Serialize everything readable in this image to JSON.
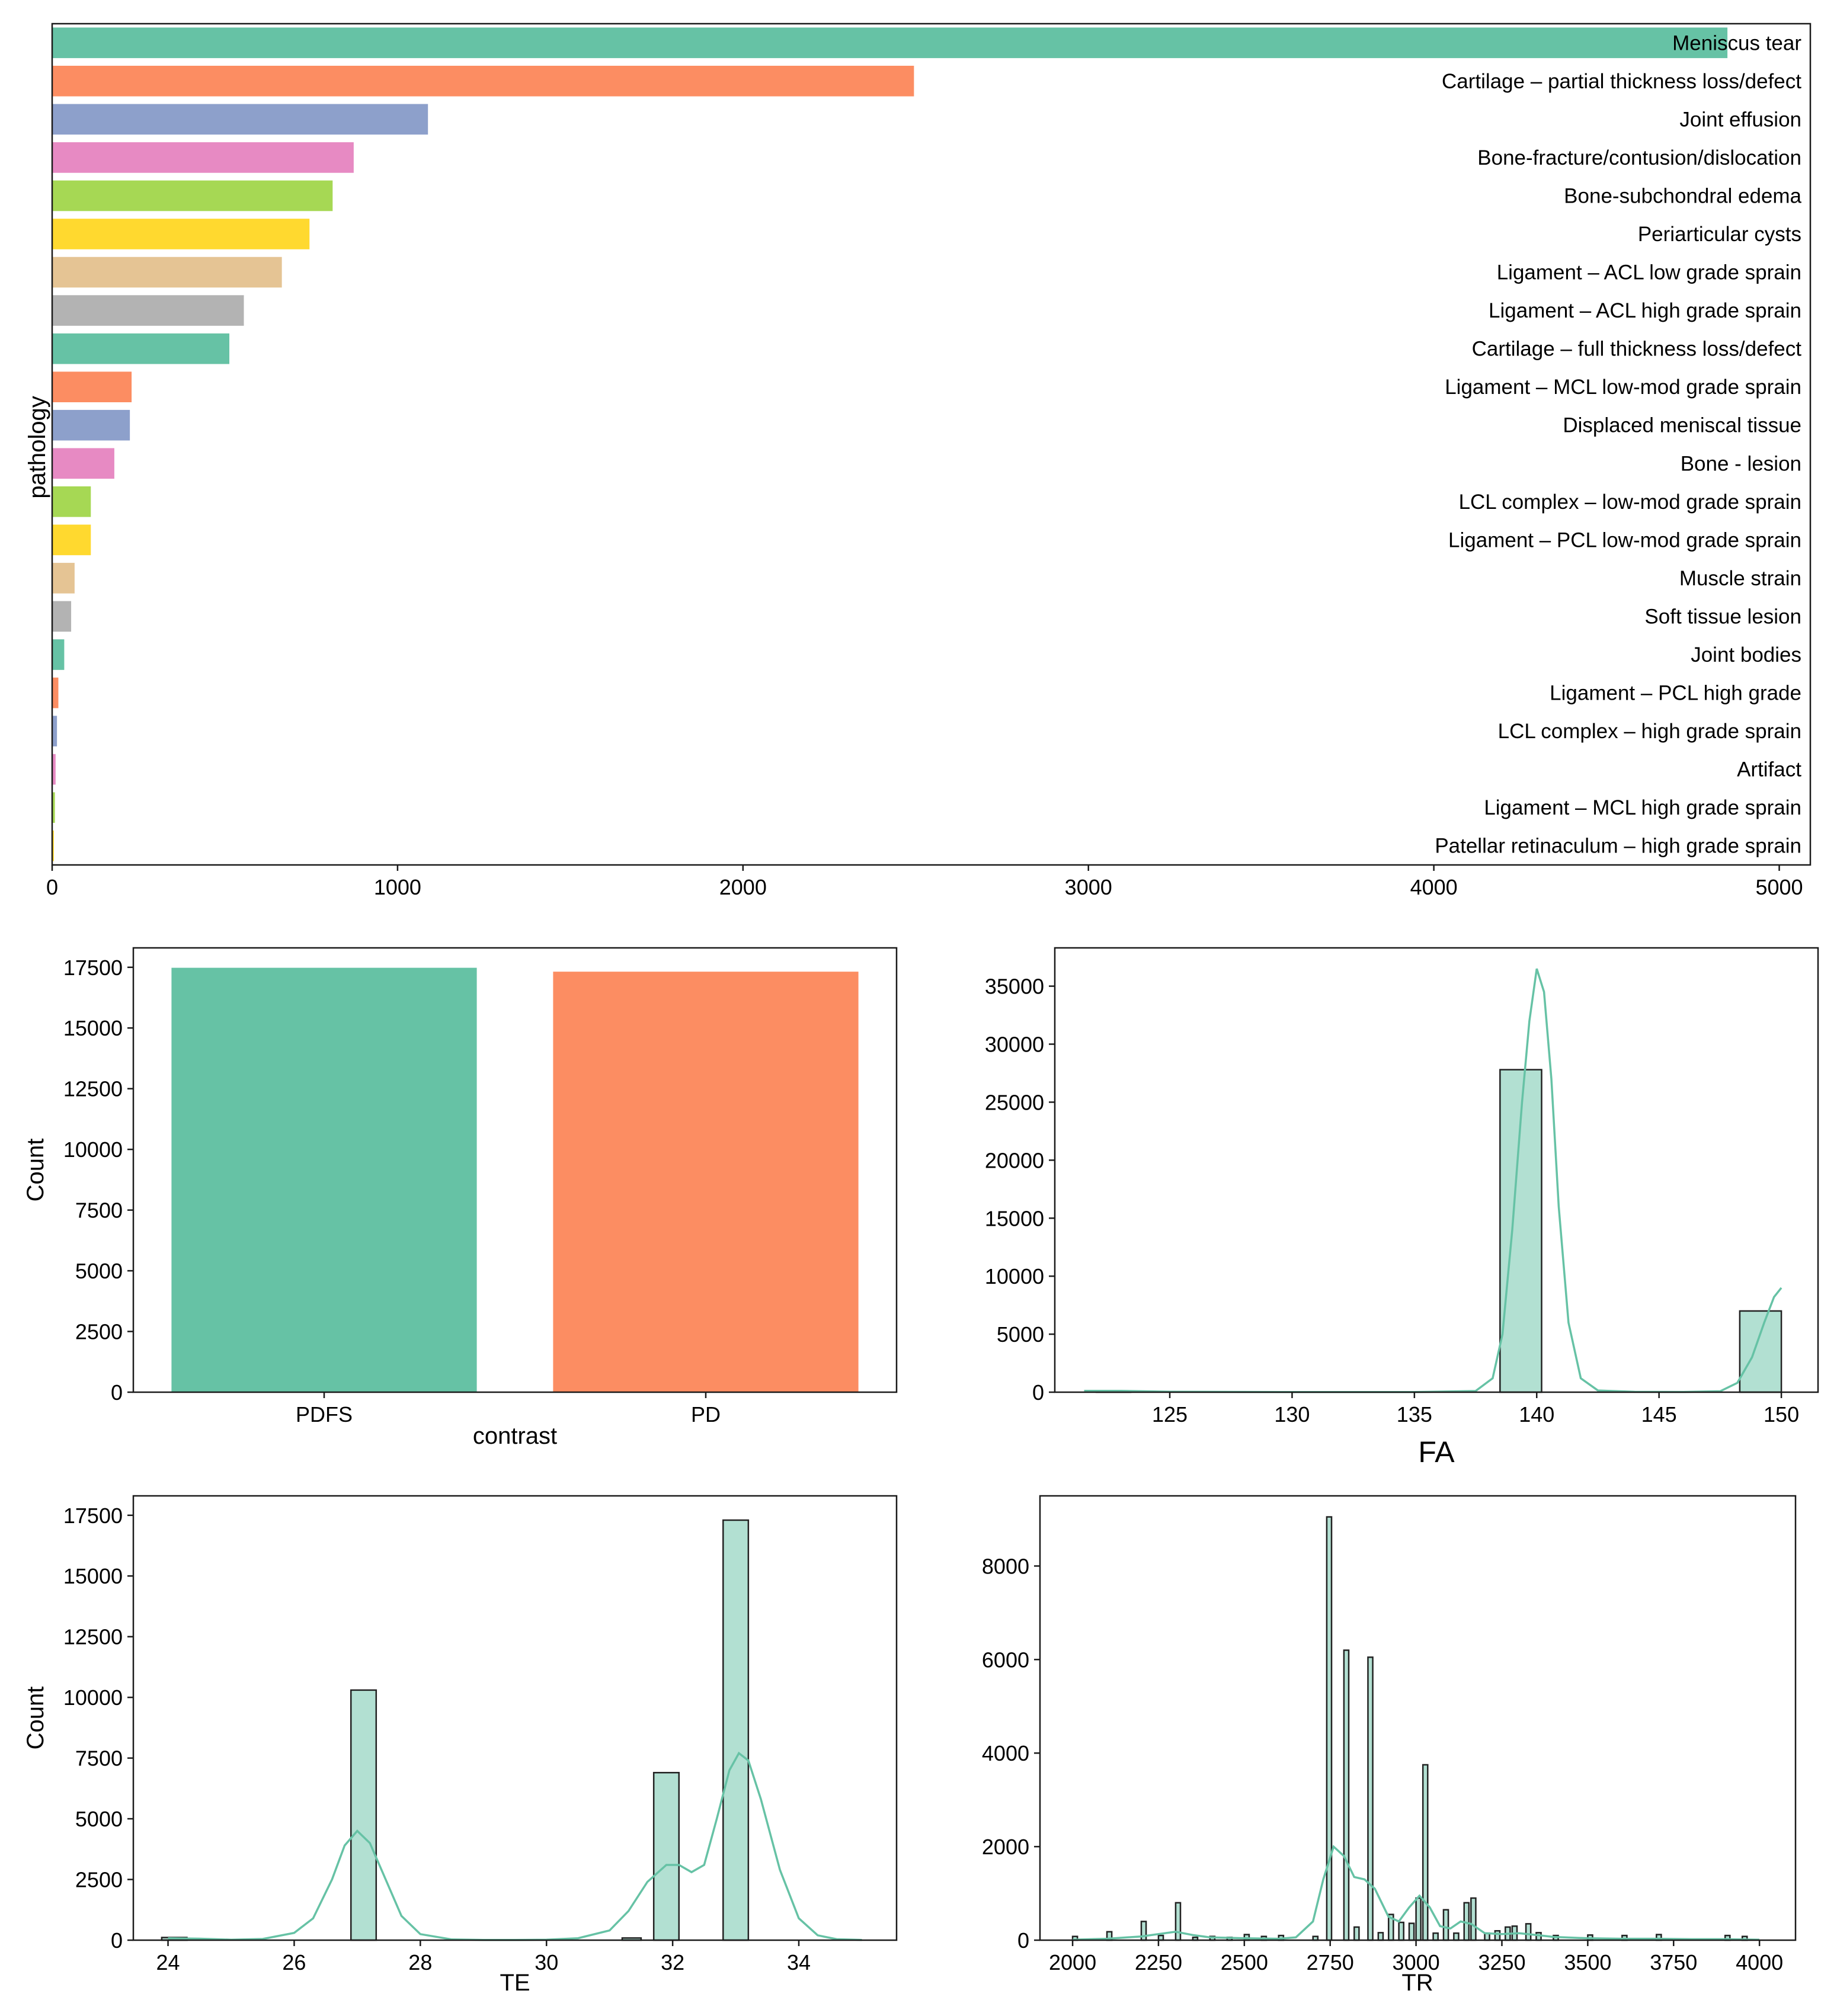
{
  "palette": {
    "set2": [
      "#66c2a5",
      "#fc8d62",
      "#8da0cb",
      "#e78ac3",
      "#a6d854",
      "#ffd92f",
      "#e5c494",
      "#b3b3b3"
    ],
    "accent": "#66c2a5"
  },
  "chart_data": [
    {
      "id": "pathology",
      "type": "bar",
      "orientation": "horizontal",
      "title": "",
      "xlabel": "",
      "ylabel": "pathology",
      "xlim": [
        0,
        5090
      ],
      "xticks": [
        0,
        1000,
        2000,
        3000,
        4000,
        5000
      ],
      "grid": false,
      "categories": [
        "Meniscus tear",
        "Cartilage – partial thickness loss/defect",
        "Joint effusion",
        "Bone-fracture/contusion/dislocation",
        "Bone-subchondral edema",
        "Periarticular cysts",
        "Ligament – ACL low grade sprain",
        "Ligament – ACL high grade sprain",
        "Cartilage – full thickness loss/defect",
        "Ligament – MCL low-mod grade sprain",
        "Displaced meniscal tissue",
        "Bone - lesion",
        "LCL complex – low-mod grade sprain",
        "Ligament – PCL low-mod grade sprain",
        "Muscle strain",
        "Soft tissue lesion",
        "Joint bodies",
        "Ligament – PCL high grade",
        "LCL complex – high grade sprain",
        "Artifact",
        "Ligament – MCL high grade sprain",
        "Patellar retinaculum – high grade sprain"
      ],
      "values": [
        4850,
        2495,
        1088,
        873,
        812,
        745,
        665,
        555,
        513,
        230,
        225,
        180,
        112,
        112,
        65,
        55,
        35,
        18,
        14,
        10,
        8,
        5
      ]
    },
    {
      "id": "contrast",
      "type": "bar",
      "title": "",
      "xlabel": "contrast",
      "ylabel": "Count",
      "ylim": [
        0,
        18300
      ],
      "yticks": [
        0,
        2500,
        5000,
        7500,
        10000,
        12500,
        15000,
        17500
      ],
      "grid": false,
      "categories": [
        "PDFS",
        "PD"
      ],
      "values": [
        17480,
        17320
      ]
    },
    {
      "id": "fa",
      "type": "bar",
      "subtype": "histogram_with_kde",
      "title": "FA",
      "xlabel": "",
      "ylabel": "",
      "xlim": [
        120.3,
        151.5
      ],
      "ylim": [
        0,
        38300
      ],
      "xticks": [
        125,
        130,
        135,
        140,
        145,
        150
      ],
      "yticks": [
        0,
        5000,
        10000,
        15000,
        20000,
        25000,
        30000,
        35000
      ],
      "grid": false,
      "bins": [
        [
          122,
          123.4,
          110
        ],
        [
          138.5,
          140.2,
          27800
        ],
        [
          148.3,
          150,
          7000
        ]
      ],
      "kde": [
        [
          121.5,
          120
        ],
        [
          123,
          110
        ],
        [
          125,
          40
        ],
        [
          130,
          10
        ],
        [
          135,
          10
        ],
        [
          137.5,
          100
        ],
        [
          138.2,
          1200
        ],
        [
          138.6,
          5000
        ],
        [
          139,
          14000
        ],
        [
          139.4,
          25000
        ],
        [
          139.7,
          32000
        ],
        [
          140,
          36500
        ],
        [
          140.3,
          34500
        ],
        [
          140.6,
          27000
        ],
        [
          140.9,
          16000
        ],
        [
          141.3,
          6000
        ],
        [
          141.8,
          1200
        ],
        [
          142.5,
          150
        ],
        [
          144,
          30
        ],
        [
          146,
          20
        ],
        [
          147.5,
          80
        ],
        [
          148.2,
          800
        ],
        [
          148.8,
          3000
        ],
        [
          149.3,
          6000
        ],
        [
          149.7,
          8200
        ],
        [
          150,
          9000
        ]
      ]
    },
    {
      "id": "te",
      "type": "bar",
      "subtype": "histogram_with_kde",
      "title": "",
      "xlabel": "TE",
      "ylabel": "Count",
      "xlim": [
        23.45,
        35.55
      ],
      "ylim": [
        0,
        18300
      ],
      "xticks": [
        24,
        26,
        28,
        30,
        32,
        34
      ],
      "yticks": [
        0,
        2500,
        5000,
        7500,
        10000,
        12500,
        15000,
        17500
      ],
      "grid": false,
      "bins": [
        [
          23.9,
          24.3,
          110
        ],
        [
          26.9,
          27.3,
          10300
        ],
        [
          31.2,
          31.5,
          90
        ],
        [
          31.7,
          32.1,
          6900
        ],
        [
          32.8,
          33.2,
          17300
        ]
      ],
      "kde": [
        [
          24,
          80
        ],
        [
          24.5,
          60
        ],
        [
          25,
          20
        ],
        [
          25.5,
          50
        ],
        [
          26,
          300
        ],
        [
          26.3,
          900
        ],
        [
          26.6,
          2500
        ],
        [
          26.8,
          3900
        ],
        [
          27,
          4500
        ],
        [
          27.2,
          4000
        ],
        [
          27.4,
          2800
        ],
        [
          27.7,
          1000
        ],
        [
          28,
          250
        ],
        [
          28.5,
          30
        ],
        [
          29,
          10
        ],
        [
          29.5,
          10
        ],
        [
          30,
          20
        ],
        [
          30.5,
          80
        ],
        [
          31,
          400
        ],
        [
          31.3,
          1200
        ],
        [
          31.6,
          2400
        ],
        [
          31.9,
          3100
        ],
        [
          32.1,
          3100
        ],
        [
          32.3,
          2800
        ],
        [
          32.5,
          3100
        ],
        [
          32.7,
          5000
        ],
        [
          32.9,
          7000
        ],
        [
          33.05,
          7700
        ],
        [
          33.2,
          7400
        ],
        [
          33.4,
          5800
        ],
        [
          33.7,
          2900
        ],
        [
          34,
          900
        ],
        [
          34.3,
          200
        ],
        [
          34.6,
          40
        ],
        [
          35,
          10
        ]
      ]
    },
    {
      "id": "tr",
      "type": "bar",
      "subtype": "histogram_with_kde",
      "title": "",
      "xlabel": "TR",
      "ylabel": "",
      "xlim": [
        1905,
        4105
      ],
      "ylim": [
        0,
        9500
      ],
      "xticks": [
        2000,
        2250,
        2500,
        2750,
        3000,
        3250,
        3500,
        3750,
        4000
      ],
      "yticks": [
        0,
        2000,
        4000,
        6000,
        8000
      ],
      "grid": false,
      "bins": [
        [
          2000,
          2014,
          80
        ],
        [
          2100,
          2114,
          180
        ],
        [
          2200,
          2214,
          400
        ],
        [
          2250,
          2264,
          100
        ],
        [
          2300,
          2314,
          800
        ],
        [
          2350,
          2364,
          60
        ],
        [
          2400,
          2414,
          80
        ],
        [
          2450,
          2464,
          60
        ],
        [
          2500,
          2514,
          120
        ],
        [
          2550,
          2564,
          80
        ],
        [
          2600,
          2614,
          100
        ],
        [
          2700,
          2714,
          80
        ],
        [
          2740,
          2754,
          9050
        ],
        [
          2790,
          2804,
          6200
        ],
        [
          2820,
          2834,
          280
        ],
        [
          2860,
          2874,
          6050
        ],
        [
          2890,
          2904,
          160
        ],
        [
          2920,
          2934,
          550
        ],
        [
          2950,
          2964,
          380
        ],
        [
          2980,
          2994,
          360
        ],
        [
          3000,
          3014,
          900
        ],
        [
          3020,
          3034,
          3750
        ],
        [
          3050,
          3064,
          150
        ],
        [
          3080,
          3094,
          650
        ],
        [
          3110,
          3124,
          150
        ],
        [
          3140,
          3154,
          800
        ],
        [
          3160,
          3174,
          900
        ],
        [
          3200,
          3214,
          150
        ],
        [
          3230,
          3244,
          200
        ],
        [
          3260,
          3274,
          280
        ],
        [
          3280,
          3294,
          300
        ],
        [
          3320,
          3334,
          350
        ],
        [
          3350,
          3364,
          160
        ],
        [
          3400,
          3414,
          100
        ],
        [
          3500,
          3514,
          110
        ],
        [
          3600,
          3614,
          100
        ],
        [
          3700,
          3714,
          120
        ],
        [
          3900,
          3914,
          100
        ],
        [
          3950,
          3964,
          80
        ]
      ],
      "kde": [
        [
          2000,
          10
        ],
        [
          2100,
          30
        ],
        [
          2200,
          80
        ],
        [
          2250,
          130
        ],
        [
          2300,
          180
        ],
        [
          2350,
          110
        ],
        [
          2400,
          60
        ],
        [
          2500,
          40
        ],
        [
          2600,
          30
        ],
        [
          2650,
          60
        ],
        [
          2700,
          400
        ],
        [
          2730,
          1300
        ],
        [
          2760,
          2000
        ],
        [
          2790,
          1800
        ],
        [
          2820,
          1350
        ],
        [
          2850,
          1300
        ],
        [
          2880,
          1100
        ],
        [
          2920,
          500
        ],
        [
          2950,
          400
        ],
        [
          2980,
          700
        ],
        [
          3010,
          950
        ],
        [
          3040,
          700
        ],
        [
          3070,
          300
        ],
        [
          3100,
          250
        ],
        [
          3130,
          400
        ],
        [
          3160,
          350
        ],
        [
          3200,
          150
        ],
        [
          3250,
          130
        ],
        [
          3300,
          150
        ],
        [
          3350,
          110
        ],
        [
          3400,
          70
        ],
        [
          3500,
          40
        ],
        [
          3600,
          30
        ],
        [
          3700,
          30
        ],
        [
          3800,
          20
        ],
        [
          3900,
          20
        ],
        [
          4000,
          10
        ]
      ]
    }
  ]
}
